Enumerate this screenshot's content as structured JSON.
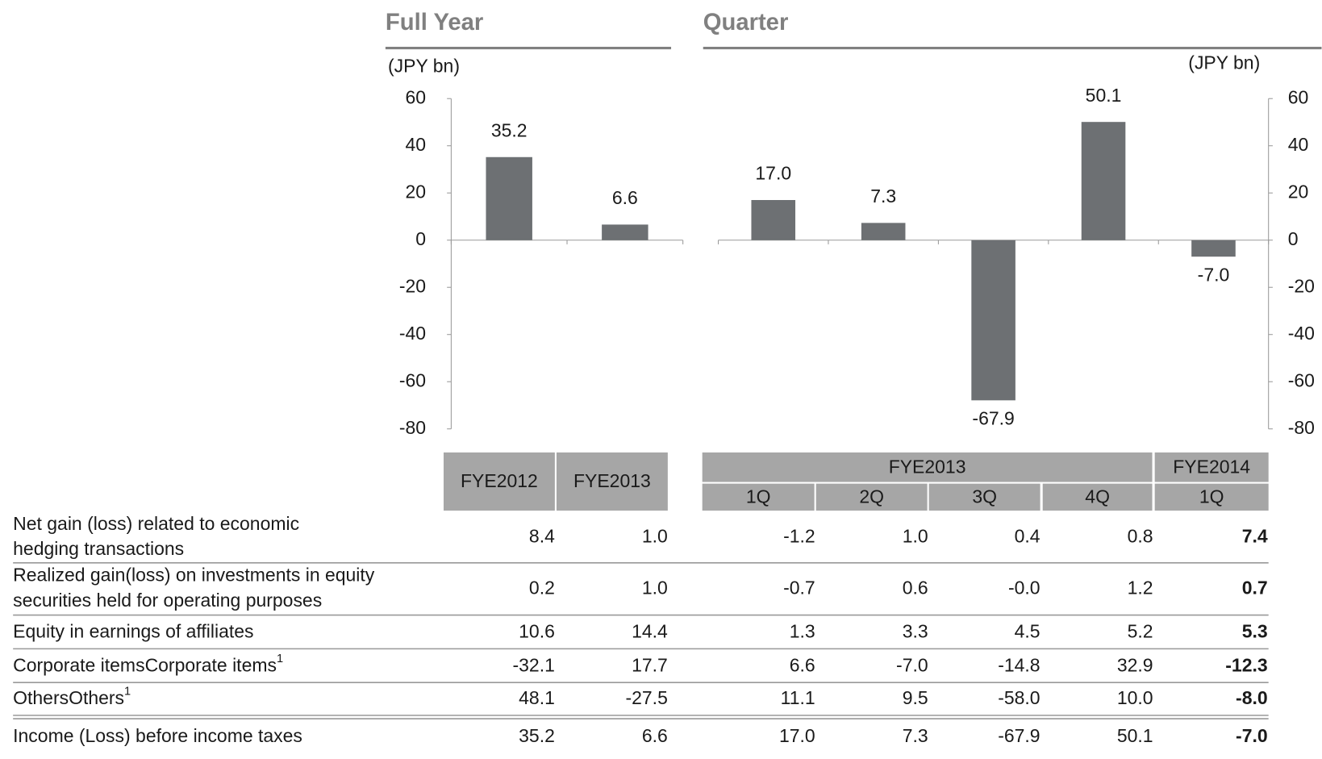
{
  "chart_data": [
    {
      "type": "bar",
      "title": "Full Year",
      "unit": "(JPY bn)",
      "axis_side": "left",
      "color": "#6d7073",
      "values": [
        35.2,
        6.6
      ],
      "value_labels": [
        "35.2",
        "6.6"
      ],
      "ylim": [
        -80,
        60
      ],
      "yticks": [
        60,
        40,
        20,
        0,
        -20,
        -40,
        -60,
        -80
      ]
    },
    {
      "type": "bar",
      "title": "Quarter",
      "unit": "(JPY bn)",
      "axis_side": "right",
      "color": "#6d7073",
      "values": [
        17.0,
        7.3,
        -67.9,
        50.1,
        -7.0
      ],
      "value_labels": [
        "17.0",
        "7.3",
        "-67.9",
        "50.1",
        "-7.0"
      ],
      "ylim": [
        -80,
        60
      ],
      "yticks": [
        60,
        40,
        20,
        0,
        -20,
        -40,
        -60,
        -80
      ]
    }
  ],
  "table": {
    "full_year": [
      "FYE2012",
      "FYE2013"
    ],
    "groups": [
      {
        "label": "FYE2013",
        "quarters": [
          "1Q",
          "2Q",
          "3Q",
          "4Q"
        ]
      },
      {
        "label": "FYE2014",
        "quarters": [
          "1Q"
        ]
      }
    ],
    "rows": [
      {
        "label": [
          "Net gain (loss) related to economic",
          " hedging transactions"
        ],
        "values": [
          "8.4",
          "1.0",
          "-1.2",
          "1.0",
          "0.4",
          "0.8",
          "7.4"
        ]
      },
      {
        "label": [
          "Realized gain(loss) on investments in equity",
          "securities held for operating purposes"
        ],
        "values": [
          "0.2",
          "1.0",
          "-0.7",
          "0.6",
          "-0.0",
          "1.2",
          "0.7"
        ]
      },
      {
        "label": [
          "Equity in earnings of affiliates"
        ],
        "values": [
          "10.6",
          "14.4",
          "1.3",
          "3.3",
          "4.5",
          "5.2",
          "5.3"
        ]
      },
      {
        "label": [
          "Corporate items"
        ],
        "note": "1",
        "values": [
          "-32.1",
          "17.7",
          "6.6",
          "-7.0",
          "-14.8",
          "32.9",
          "-12.3"
        ]
      },
      {
        "label": [
          "Others"
        ],
        "note": "1",
        "values": [
          "48.1",
          "-27.5",
          "11.1",
          "9.5",
          "-58.0",
          "10.0",
          "-8.0"
        ]
      },
      {
        "label": [
          "Income (Loss) before income taxes"
        ],
        "values": [
          "35.2",
          "6.6",
          "17.0",
          "7.3",
          "-67.9",
          "50.1",
          "-7.0"
        ]
      }
    ]
  }
}
